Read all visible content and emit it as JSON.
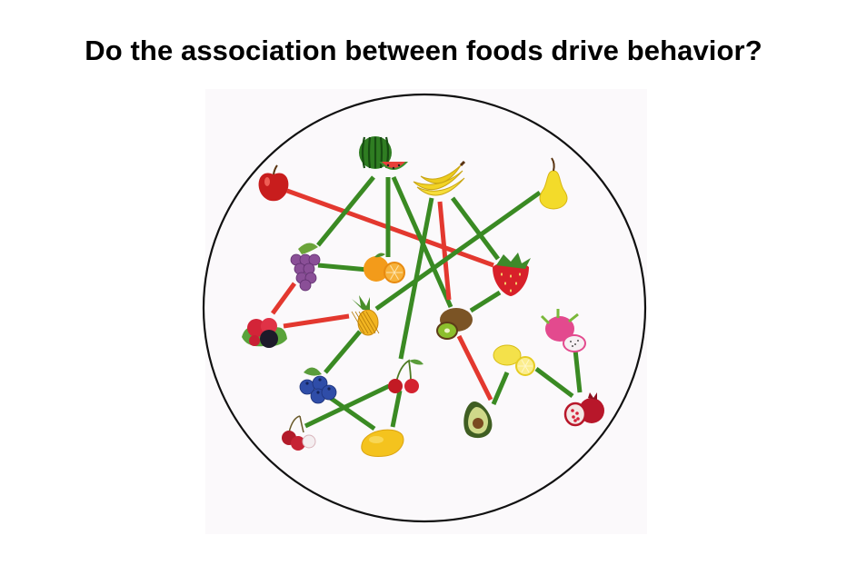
{
  "slide": {
    "title": "Do the association between foods drive behavior?"
  },
  "diagram": {
    "edge_colors": {
      "positive": "#3a8a23",
      "negative": "#e3382f"
    },
    "nodes": [
      {
        "id": "watermelon",
        "icon": "watermelon-icon"
      },
      {
        "id": "apple",
        "icon": "apple-icon"
      },
      {
        "id": "banana",
        "icon": "banana-icon"
      },
      {
        "id": "pear",
        "icon": "pear-icon"
      },
      {
        "id": "grapes",
        "icon": "grapes-icon"
      },
      {
        "id": "orange",
        "icon": "orange-icon"
      },
      {
        "id": "strawberry",
        "icon": "strawberry-icon"
      },
      {
        "id": "raspberry",
        "icon": "raspberry-icon"
      },
      {
        "id": "pineapple",
        "icon": "pineapple-icon"
      },
      {
        "id": "kiwi",
        "icon": "kiwi-icon"
      },
      {
        "id": "dragonfruit",
        "icon": "dragonfruit-icon"
      },
      {
        "id": "lemon",
        "icon": "lemon-icon"
      },
      {
        "id": "blueberry",
        "icon": "blueberry-icon"
      },
      {
        "id": "cherry",
        "icon": "cherry-icon"
      },
      {
        "id": "avocado",
        "icon": "avocado-icon"
      },
      {
        "id": "pomegranate",
        "icon": "pomegranate-icon"
      },
      {
        "id": "lychee",
        "icon": "lychee-icon"
      },
      {
        "id": "mango",
        "icon": "mango-icon"
      }
    ],
    "edges": [
      {
        "from": "apple",
        "to": "strawberry",
        "type": "negative"
      },
      {
        "from": "watermelon",
        "to": "grapes",
        "type": "positive"
      },
      {
        "from": "watermelon",
        "to": "orange",
        "type": "positive"
      },
      {
        "from": "watermelon",
        "to": "kiwi",
        "type": "positive"
      },
      {
        "from": "banana",
        "to": "strawberry",
        "type": "positive"
      },
      {
        "from": "banana",
        "to": "kiwi",
        "type": "negative"
      },
      {
        "from": "banana",
        "to": "cherry",
        "type": "positive"
      },
      {
        "from": "pear",
        "to": "pineapple",
        "type": "positive"
      },
      {
        "from": "grapes",
        "to": "orange",
        "type": "positive"
      },
      {
        "from": "grapes",
        "to": "raspberry",
        "type": "negative"
      },
      {
        "from": "raspberry",
        "to": "pineapple",
        "type": "negative"
      },
      {
        "from": "strawberry",
        "to": "kiwi",
        "type": "positive"
      },
      {
        "from": "kiwi",
        "to": "avocado",
        "type": "negative"
      },
      {
        "from": "pineapple",
        "to": "blueberry",
        "type": "positive"
      },
      {
        "from": "blueberry",
        "to": "mango",
        "type": "positive"
      },
      {
        "from": "cherry",
        "to": "lychee",
        "type": "positive"
      },
      {
        "from": "cherry",
        "to": "mango",
        "type": "positive"
      },
      {
        "from": "lemon",
        "to": "avocado",
        "type": "positive"
      },
      {
        "from": "lemon",
        "to": "pomegranate",
        "type": "positive"
      },
      {
        "from": "dragonfruit",
        "to": "pomegranate",
        "type": "positive"
      }
    ]
  }
}
